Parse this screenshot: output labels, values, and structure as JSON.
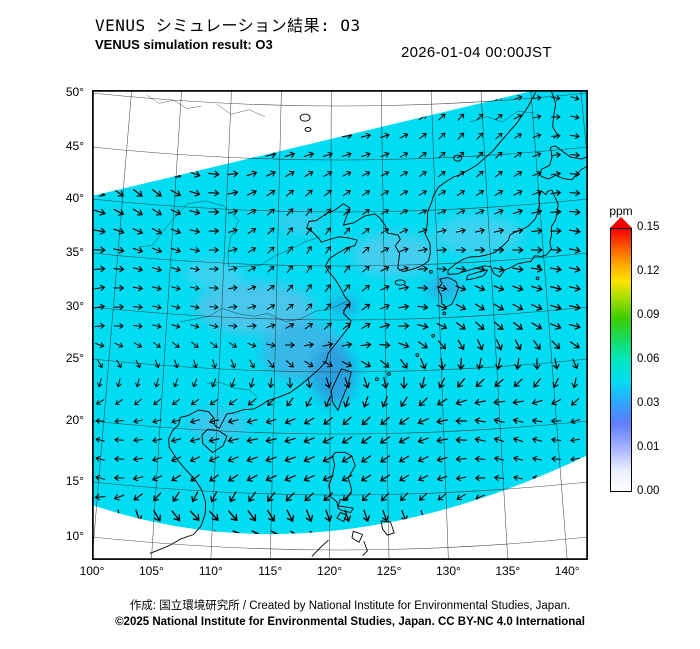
{
  "header": {
    "title_jp": "VENUS シミュレーション結果: O3",
    "title_en": "VENUS simulation result: O3",
    "datetime": "2026-01-04 00:00JST"
  },
  "chart_data": {
    "type": "heatmap",
    "title": "VENUS simulation result: O3",
    "subtitle_jp": "VENUS シミュレーション結果: O3",
    "valid_time": "2026-01-04 00:00JST",
    "variable": "O3 concentration",
    "units": "ppm",
    "x_axis": {
      "ticks": [
        "100°",
        "105°",
        "110°",
        "115°",
        "120°",
        "125°",
        "130°",
        "135°",
        "140°"
      ],
      "lon_range": [
        100,
        142
      ]
    },
    "y_axis": {
      "ticks": [
        "50°",
        "45°",
        "40°",
        "35°",
        "30°",
        "25°",
        "20°",
        "15°",
        "10°"
      ],
      "lat_range": [
        8,
        50.5
      ]
    },
    "colorbar": {
      "label": "ppm",
      "tick_labels": [
        "0.15",
        "0.12",
        "0.09",
        "0.06",
        "0.03",
        "0.01",
        "0.00"
      ],
      "gradient_stops": [
        {
          "pos": 0.0,
          "color": "#ffffff"
        },
        {
          "pos": 0.08,
          "color": "#e9edff"
        },
        {
          "pos": 0.16,
          "color": "#a9b5ff"
        },
        {
          "pos": 0.26,
          "color": "#5e7dff"
        },
        {
          "pos": 0.34,
          "color": "#2ea8ff"
        },
        {
          "pos": 0.42,
          "color": "#00ddf2"
        },
        {
          "pos": 0.5,
          "color": "#00e7bf"
        },
        {
          "pos": 0.58,
          "color": "#17dc60"
        },
        {
          "pos": 0.66,
          "color": "#3ecc00"
        },
        {
          "pos": 0.73,
          "color": "#9bde00"
        },
        {
          "pos": 0.8,
          "color": "#ffe400"
        },
        {
          "pos": 0.87,
          "color": "#ffa300"
        },
        {
          "pos": 0.93,
          "color": "#ff5a00"
        },
        {
          "pos": 1.0,
          "color": "#f40000"
        }
      ]
    },
    "field_summary": "O3 of roughly 0.03-0.05 ppm (cyan) covers most of the tilted model domain; patches of lower O3 (blue, ~0.01-0.03 ppm) appear over eastern China, the Taiwan Strait, the Yellow Sea / Korea, Japan and around Hainan.",
    "domain_fill_color": "#00dcf2",
    "domain_note": "Model domain is a rotated rectangle clipped by the map frame; areas outside it are white with graticule and coastlines only.",
    "low_value_patches": [
      {
        "lon": 113.0,
        "lat": 31.0,
        "rx": 60,
        "ry": 26,
        "color": "#55c2ea",
        "opacity": 0.85
      },
      {
        "lon": 117.5,
        "lat": 27.0,
        "rx": 42,
        "ry": 30,
        "color": "#43b2e6",
        "opacity": 0.85
      },
      {
        "lon": 120.3,
        "lat": 24.8,
        "rx": 22,
        "ry": 30,
        "color": "#2e9bdf",
        "opacity": 0.9
      },
      {
        "lon": 126.0,
        "lat": 36.0,
        "rx": 42,
        "ry": 22,
        "color": "#5cc8ec",
        "opacity": 0.75
      },
      {
        "lon": 134.0,
        "lat": 37.5,
        "rx": 46,
        "ry": 20,
        "color": "#66cdee",
        "opacity": 0.6
      },
      {
        "lon": 110.0,
        "lat": 20.5,
        "rx": 30,
        "ry": 16,
        "color": "#4fbfe8",
        "opacity": 0.7
      },
      {
        "lon": 130.5,
        "lat": 32.8,
        "rx": 17,
        "ry": 12,
        "color": "#3aa6e2",
        "opacity": 0.8
      },
      {
        "lon": 121.3,
        "lat": 31.3,
        "rx": 13,
        "ry": 9,
        "color": "#2f9dde",
        "opacity": 0.9
      },
      {
        "lon": 109.0,
        "lat": 34.0,
        "rx": 30,
        "ry": 14,
        "color": "#62cbee",
        "opacity": 0.6
      },
      {
        "lon": 117.0,
        "lat": 39.0,
        "rx": 22,
        "ry": 12,
        "color": "#58c5ea",
        "opacity": 0.6
      }
    ],
    "wind_overlay": {
      "present": true,
      "symbol": "black arrows",
      "description": "Wind vectors drawn on a regular grid across the shaded domain; broadly westerly in the north, turning northerly then easterly toward the tropics, with a band of strong flow along the southern domain edge."
    }
  },
  "footer": {
    "credit": "作成: 国立環境研究所 / Created by National Institute for Environmental Studies, Japan.",
    "copyright": "©2025 National Institute for Environmental Studies, Japan. CC BY-NC 4.0 International"
  },
  "colors": {
    "background": "#ffffff",
    "frame": "#000000",
    "graticule": "#2b2b2b",
    "coastline": "#000000",
    "wind_arrows": "#000000"
  }
}
